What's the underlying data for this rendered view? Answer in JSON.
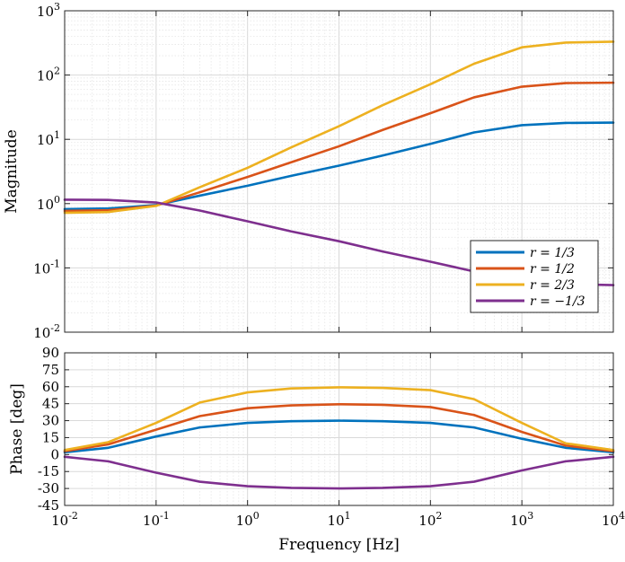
{
  "chart_data": [
    {
      "panel": "magnitude",
      "type": "line",
      "xscale": "log",
      "yscale": "log",
      "xlim": [
        0.01,
        10000
      ],
      "ylim": [
        0.01,
        1000
      ],
      "xlabel": "",
      "ylabel": "Magnitude",
      "grid": true,
      "legend_position": "bottom-right",
      "yticks": [
        {
          "base": "10",
          "exp": "-2"
        },
        {
          "base": "10",
          "exp": "-1"
        },
        {
          "base": "10",
          "exp": "0"
        },
        {
          "base": "10",
          "exp": "1"
        },
        {
          "base": "10",
          "exp": "2"
        },
        {
          "base": "10",
          "exp": "3"
        }
      ],
      "x": [
        0.01,
        0.03,
        0.1,
        0.3,
        1,
        3,
        10,
        30,
        100,
        300,
        1000,
        3000,
        10000
      ],
      "series": [
        {
          "name": "r = 1/3",
          "color": "#0072BD",
          "values": [
            0.82,
            0.84,
            0.95,
            1.33,
            1.9,
            2.7,
            3.9,
            5.6,
            8.5,
            12.8,
            16.6,
            18.0,
            18.2
          ]
        },
        {
          "name": "r = 1/2",
          "color": "#D95319",
          "values": [
            0.77,
            0.79,
            0.93,
            1.5,
            2.6,
            4.4,
            7.8,
            14.0,
            25.5,
            45.0,
            66.0,
            75.0,
            76.0
          ]
        },
        {
          "name": "r = 2/3",
          "color": "#EDB120",
          "values": [
            0.72,
            0.74,
            0.92,
            1.8,
            3.6,
            7.5,
            16.0,
            34.0,
            72.0,
            150.0,
            270.0,
            320.0,
            330.0
          ]
        },
        {
          "name": "r = −1/3",
          "color": "#7E2F8E",
          "values": [
            1.15,
            1.14,
            1.04,
            0.78,
            0.53,
            0.37,
            0.26,
            0.18,
            0.125,
            0.088,
            0.065,
            0.056,
            0.054
          ]
        }
      ]
    },
    {
      "panel": "phase",
      "type": "line",
      "xscale": "log",
      "yscale": "linear",
      "xlim": [
        0.01,
        10000
      ],
      "ylim": [
        -45,
        90
      ],
      "xlabel": "Frequency [Hz]",
      "ylabel": "Phase [deg]",
      "grid": true,
      "yticks": [
        "90",
        "75",
        "60",
        "45",
        "30",
        "15",
        "0",
        "-15",
        "-30",
        "-45"
      ],
      "ytick_values": [
        90,
        75,
        60,
        45,
        30,
        15,
        0,
        -15,
        -30,
        -45
      ],
      "xticks": [
        {
          "base": "10",
          "exp": "-2"
        },
        {
          "base": "10",
          "exp": "-1"
        },
        {
          "base": "10",
          "exp": "0"
        },
        {
          "base": "10",
          "exp": "1"
        },
        {
          "base": "10",
          "exp": "2"
        },
        {
          "base": "10",
          "exp": "3"
        },
        {
          "base": "10",
          "exp": "4"
        }
      ],
      "x": [
        0.01,
        0.03,
        0.1,
        0.3,
        1,
        3,
        10,
        30,
        100,
        300,
        1000,
        3000,
        10000
      ],
      "series": [
        {
          "name": "r = 1/3",
          "color": "#0072BD",
          "values": [
            2,
            6,
            16,
            24,
            28,
            29.5,
            30,
            29.5,
            28,
            24,
            14,
            6,
            2
          ]
        },
        {
          "name": "r = 1/2",
          "color": "#D95319",
          "values": [
            3,
            9,
            22,
            34,
            41,
            43.5,
            44.5,
            44,
            42,
            35,
            20,
            8,
            3
          ]
        },
        {
          "name": "r = 2/3",
          "color": "#EDB120",
          "values": [
            4,
            11,
            28,
            46,
            55,
            58.5,
            59.5,
            59,
            57,
            49,
            28,
            10,
            4
          ]
        },
        {
          "name": "r = −1/3",
          "color": "#7E2F8E",
          "values": [
            -2,
            -6,
            -16,
            -24,
            -28,
            -29.5,
            -30,
            -29.5,
            -28,
            -24,
            -14,
            -6,
            -2
          ]
        }
      ]
    }
  ]
}
